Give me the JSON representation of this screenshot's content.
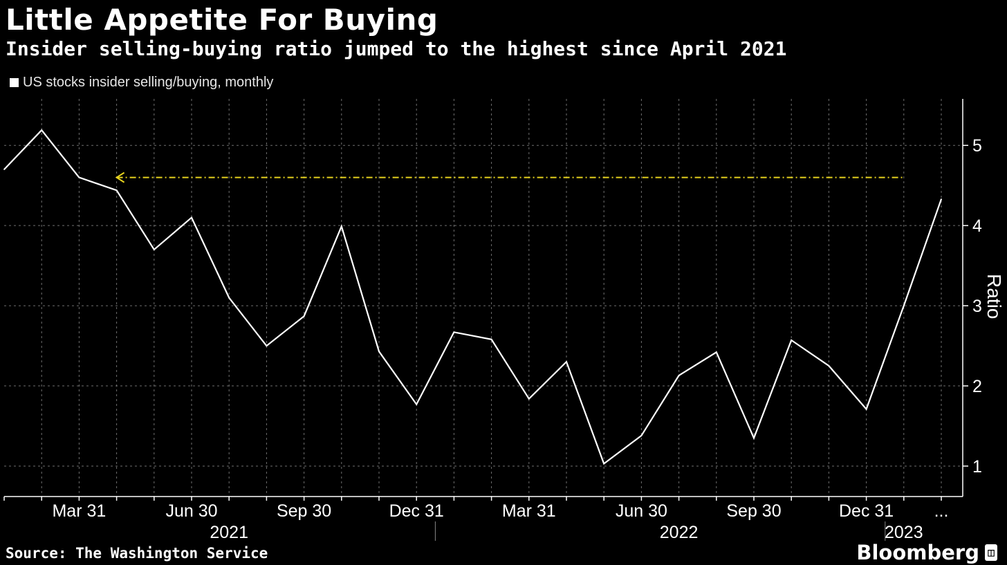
{
  "header": {
    "title": "Little Appetite For Buying",
    "subtitle": "Insider selling-buying ratio jumped to the highest since April 2021"
  },
  "legend": {
    "label": "US stocks insider selling/buying, monthly"
  },
  "footer": {
    "source": "Source: The Washington Service",
    "brand": "Bloomberg"
  },
  "colors": {
    "line": "#ffffff",
    "reference": "#e6d21e",
    "grid": "#6f6f6f",
    "background": "#000000"
  },
  "chart_data": {
    "type": "line",
    "ylabel": "Ratio",
    "ylim": [
      0.62,
      5.58
    ],
    "yticks": [
      1,
      2,
      3,
      4,
      5
    ],
    "grid": true,
    "x": [
      "2021-01",
      "2021-02",
      "2021-03",
      "2021-04",
      "2021-05",
      "2021-06",
      "2021-07",
      "2021-08",
      "2021-09",
      "2021-10",
      "2021-11",
      "2021-12",
      "2022-01",
      "2022-02",
      "2022-03",
      "2022-04",
      "2022-05",
      "2022-06",
      "2022-07",
      "2022-08",
      "2022-09",
      "2022-10",
      "2022-11",
      "2022-12",
      "2023-01",
      "2023-02"
    ],
    "series": [
      {
        "values": [
          4.7,
          5.19,
          4.6,
          4.44,
          3.7,
          4.1,
          3.1,
          2.5,
          2.87,
          3.99,
          2.43,
          1.77,
          2.67,
          2.58,
          1.84,
          2.3,
          1.03,
          1.38,
          2.13,
          2.42,
          1.35,
          2.57,
          2.25,
          1.71,
          3.0,
          4.33
        ]
      }
    ],
    "annotations": [
      {
        "type": "reference-line",
        "y": 4.6,
        "style": "dash-dot",
        "arrow": "left",
        "from_x": "2021-04",
        "to_x": "2023-01"
      }
    ],
    "xtick_labels": [
      "Mar 31",
      "Jun 30",
      "Sep 30",
      "Dec 31",
      "Mar 31",
      "Jun 30",
      "Sep 30",
      "Dec 31",
      "..."
    ],
    "xtick_months": [
      "2021-03",
      "2021-06",
      "2021-09",
      "2021-12",
      "2022-03",
      "2022-06",
      "2022-09",
      "2022-12",
      "2023-02"
    ],
    "years": [
      {
        "label": "2021",
        "center_month": "2021-07"
      },
      {
        "label": "2022",
        "center_month": "2022-07"
      },
      {
        "label": "2023",
        "center_month": "2023-01"
      }
    ],
    "year_separators": [
      "2022-01",
      "2023-01"
    ]
  }
}
